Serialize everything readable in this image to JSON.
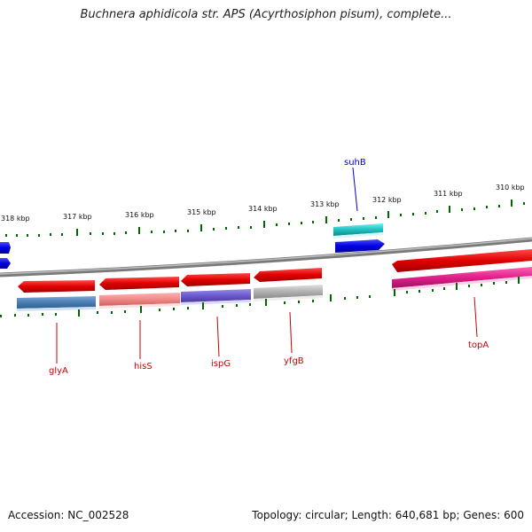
{
  "title": "Buchnera aphidicola str. APS (Acyrthosiphon pisum), complete...",
  "footer": {
    "accession": "Accession: NC_002528",
    "topology": "Topology: circular; Length: 640,681 bp; Genes: 600"
  },
  "scale": {
    "ticks": [
      "318 kbp",
      "317 kbp",
      "316 kbp",
      "315 kbp",
      "314 kbp",
      "313 kbp",
      "312 kbp",
      "311 kbp",
      "310 kbp"
    ]
  },
  "labels": {
    "glyA": "glyA",
    "hisS": "hisS",
    "ispG": "ispG",
    "yfgB": "yfgB",
    "topA": "topA",
    "suhB": "suhB"
  },
  "colors": {
    "forward_cds": "#0000e0",
    "reverse_cds": "#e00000",
    "backbone": "#808080",
    "tick": "#006600",
    "label_forward": "#0000cc",
    "label_reverse": "#cc0000",
    "glyA_orf": "#4a7fb5",
    "hisS_orf": "#f08a8a",
    "ispG_orf": "#6a5acd",
    "yfgB_orf": "#b0b0b0",
    "topA_orf": "#e0208a",
    "suhB_orf": "#20c0c0"
  }
}
